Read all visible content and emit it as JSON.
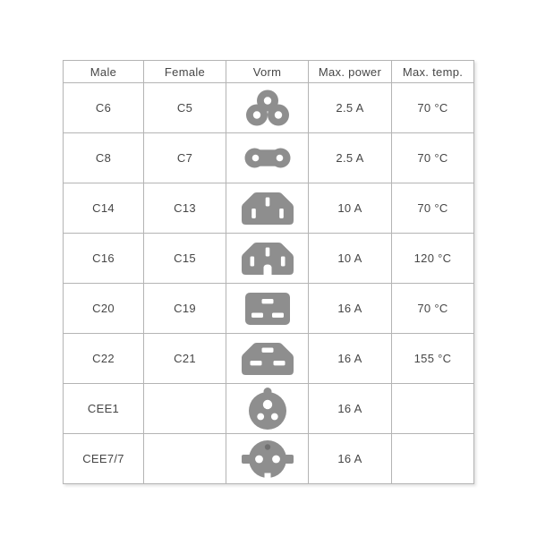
{
  "table": {
    "columns": [
      {
        "key": "male",
        "label": "Male"
      },
      {
        "key": "female",
        "label": "Female"
      },
      {
        "key": "vorm",
        "label": "Vorm"
      },
      {
        "key": "power",
        "label": "Max. power"
      },
      {
        "key": "temp",
        "label": "Max. temp."
      }
    ],
    "rows": [
      {
        "male": "C6",
        "female": "C5",
        "icon": "c6-c5-cloverleaf-icon",
        "power": "2.5 A",
        "temp": "70 °C"
      },
      {
        "male": "C8",
        "female": "C7",
        "icon": "c8-c7-figure-eight-icon",
        "power": "2.5 A",
        "temp": "70 °C"
      },
      {
        "male": "C14",
        "female": "C13",
        "icon": "c14-c13-inlet-icon",
        "power": "10 A",
        "temp": "70 °C"
      },
      {
        "male": "C16",
        "female": "C15",
        "icon": "c16-c15-notched-inlet-icon",
        "power": "10 A",
        "temp": "120 °C"
      },
      {
        "male": "C20",
        "female": "C19",
        "icon": "c20-c19-inlet-icon",
        "power": "16 A",
        "temp": "70 °C"
      },
      {
        "male": "C22",
        "female": "C21",
        "icon": "c22-c21-inlet-icon",
        "power": "16 A",
        "temp": "155 °C"
      },
      {
        "male": "CEE1",
        "female": "",
        "icon": "cee1-round-plug-icon",
        "power": "16 A",
        "temp": ""
      },
      {
        "male": "CEE7/7",
        "female": "",
        "icon": "cee7-7-schuko-plug-icon",
        "power": "16 A",
        "temp": ""
      }
    ],
    "colors": {
      "icon_gray": "#8e8e8e",
      "icon_dark_dot": "#6f6f6f",
      "border": "#b4b4b4",
      "text": "#464646"
    }
  }
}
